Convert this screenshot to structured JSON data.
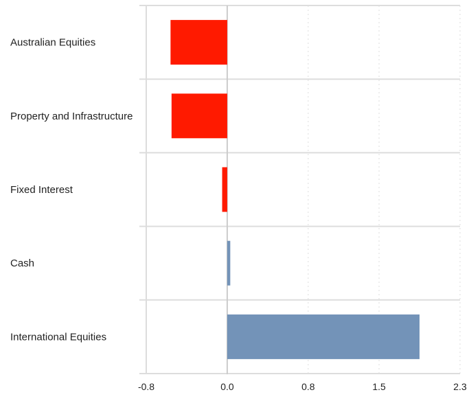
{
  "chart_data": {
    "type": "bar",
    "orientation": "horizontal",
    "categories": [
      "Australian Equities",
      "Property and Infrastructure",
      "Fixed Interest",
      "Cash",
      "International Equities"
    ],
    "values": [
      -0.56,
      -0.55,
      -0.05,
      0.03,
      1.9
    ],
    "xlim": [
      -0.8,
      2.3
    ],
    "xticks": [
      "-0.8",
      "0.0",
      "0.8",
      "1.5",
      "2.3"
    ],
    "xtick_values": [
      -0.8,
      0.0,
      0.8,
      1.5,
      2.3
    ],
    "title": "",
    "xlabel": "",
    "ylabel": "",
    "grid": "vertical dotted",
    "colors": {
      "negative": "#ff1a00",
      "positive": "#7393b8",
      "grid": "#dddddd",
      "zero_line": "#cccccc",
      "row_separator": "#dddddd"
    }
  }
}
